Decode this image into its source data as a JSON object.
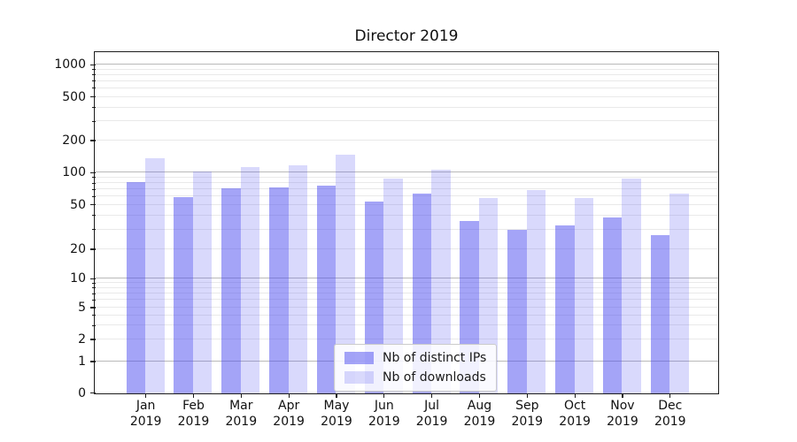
{
  "title": "Director 2019",
  "chart_data": {
    "type": "bar",
    "title": "Director 2019",
    "categories": [
      "Jan 2019",
      "Feb 2019",
      "Mar 2019",
      "Apr 2019",
      "May 2019",
      "Jun 2019",
      "Jul 2019",
      "Aug 2019",
      "Sep 2019",
      "Oct 2019",
      "Nov 2019",
      "Dec 2019"
    ],
    "series": [
      {
        "name": "Nb of distinct IPs",
        "values": [
          82,
          60,
          72,
          74,
          77,
          54,
          64,
          36,
          30,
          33,
          39,
          27
        ],
        "color": "rgba(80,80,240,0.52)"
      },
      {
        "name": "Nb of downloads",
        "values": [
          137,
          104,
          115,
          118,
          148,
          90,
          108,
          59,
          69,
          59,
          89,
          64
        ],
        "color": "rgba(80,80,240,0.22)"
      }
    ],
    "xlabel": "",
    "ylabel": "",
    "y_ticks": [
      0,
      1,
      2,
      5,
      10,
      20,
      50,
      100,
      200,
      500,
      1000
    ],
    "y_scale": "symlog",
    "ylim": [
      0,
      1300
    ],
    "grid": "log major and minor horizontal gridlines",
    "legend": {
      "position": "lower center",
      "entries": [
        "Nb of distinct IPs",
        "Nb of downloads"
      ]
    },
    "colors": {
      "distinct_ips_fill": "#a4a4f4",
      "downloads_fill": "#d8d8f9",
      "major_grid": "#b9b9b9",
      "minor_grid": "#e9e9e9",
      "axis": "#1c1c1c"
    }
  }
}
